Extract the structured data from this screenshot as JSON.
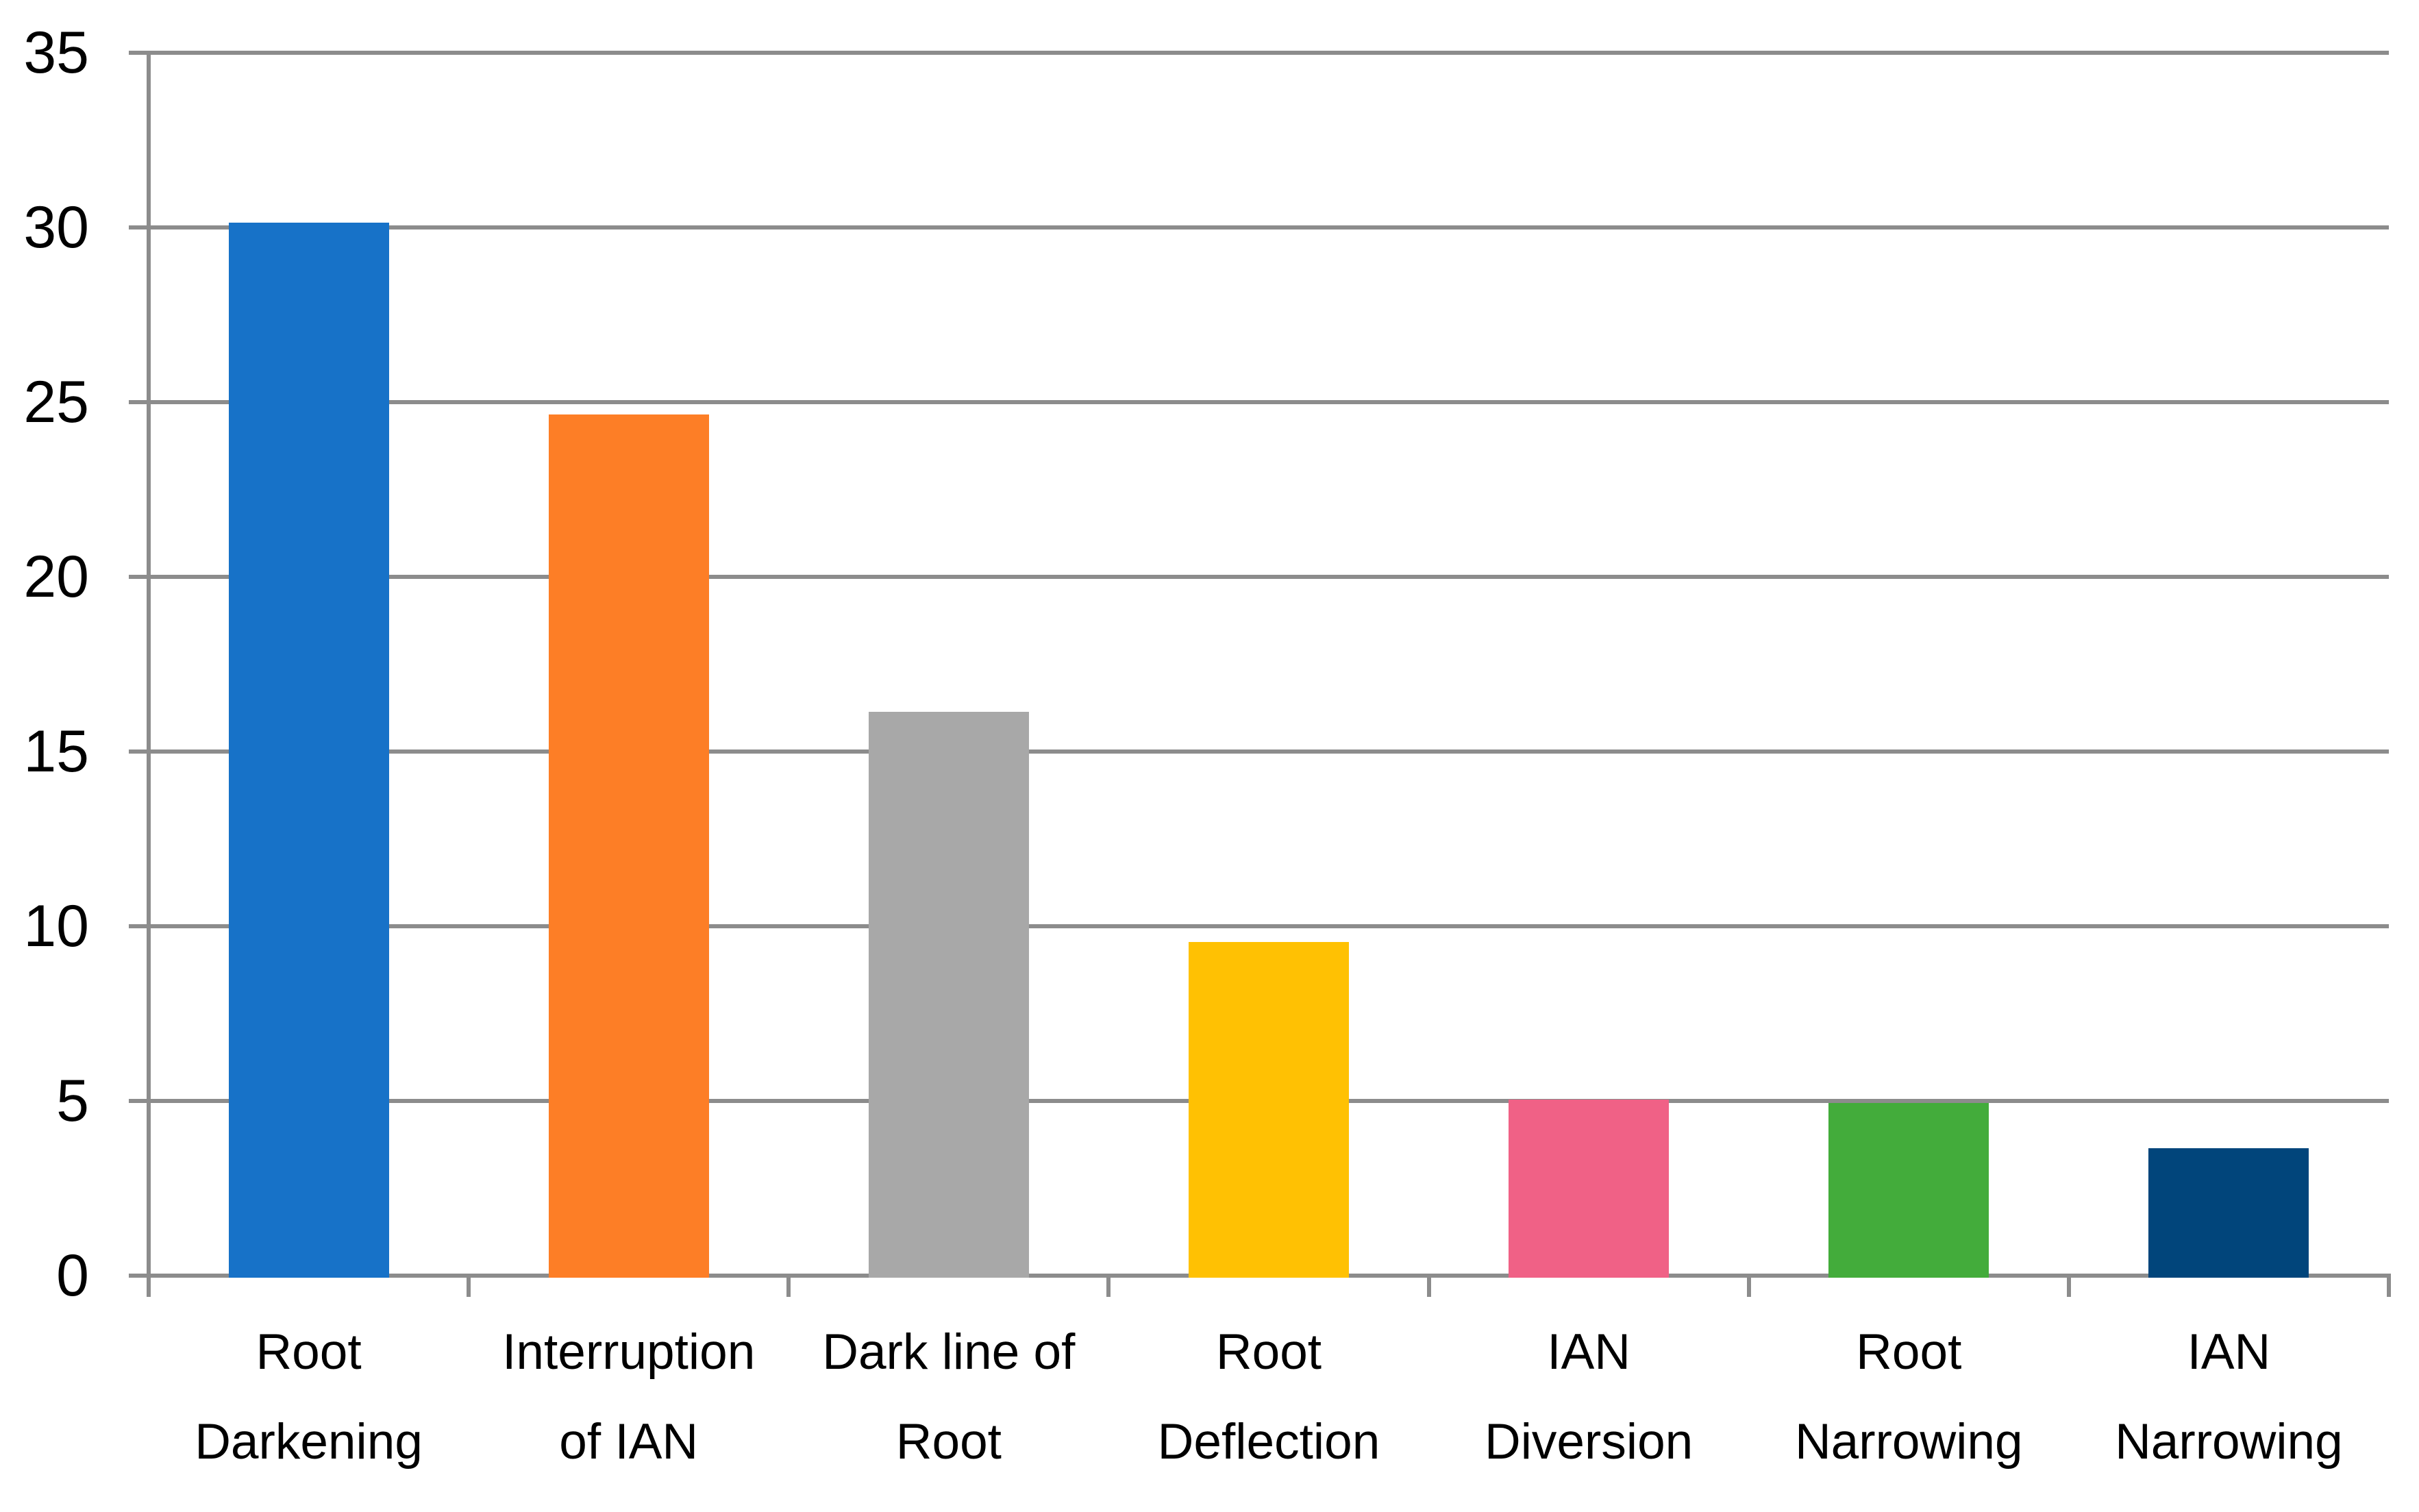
{
  "chart_data": {
    "type": "bar",
    "title": "",
    "categories": [
      "Root\nDarkening",
      "Interruption\nof IAN",
      "Dark line of\nRoot",
      "Root\nDeflection",
      "IAN\nDiversion",
      "Root\nNarrowing",
      "IAN\nNarrowing"
    ],
    "values": [
      30.2,
      24.7,
      16.2,
      9.6,
      5.1,
      5.0,
      3.7
    ],
    "bar_colors": [
      "#1772C8",
      "#FD7E26",
      "#A8A8A8",
      "#FFC103",
      "#F06186",
      "#43AC3B",
      "#01457B"
    ],
    "ylim": [
      0,
      35
    ],
    "ytick_interval": 5,
    "ytick_labels": [
      "0",
      "5",
      "10",
      "15",
      "20",
      "25",
      "30",
      "35"
    ],
    "xlabel": "",
    "ylabel": "",
    "grid": true,
    "legend": "none",
    "gridline_color": "#8C8C8C",
    "axis_color": "#8C8C8C",
    "text_color": "#000000",
    "background_color": "#FFFFFF"
  }
}
